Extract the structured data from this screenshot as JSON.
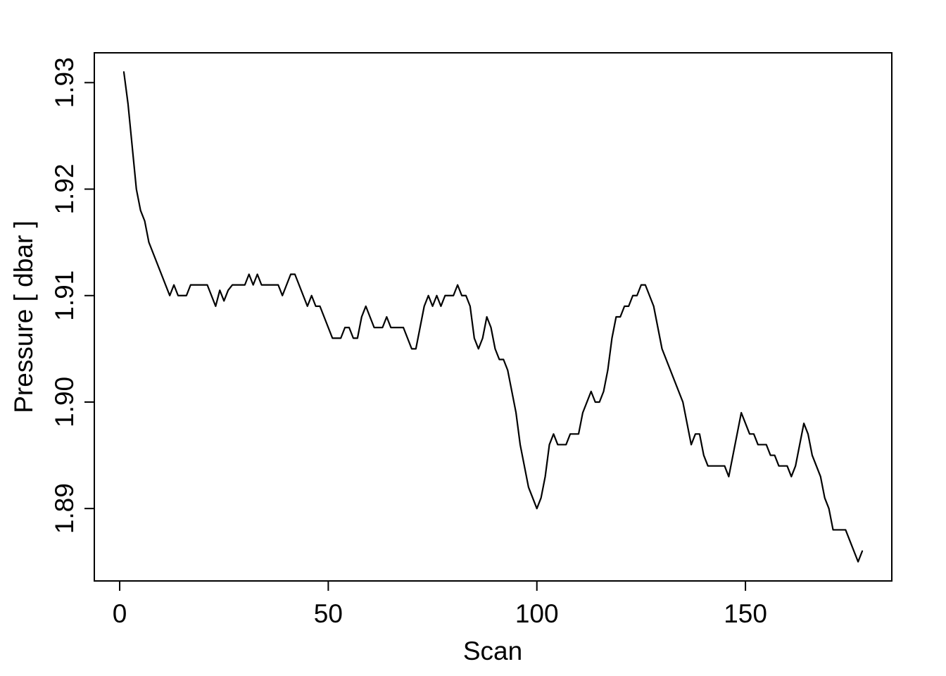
{
  "figure": {
    "background": "#ffffff",
    "line_color": "#000000",
    "axis_color": "#000000"
  },
  "chart_data": {
    "type": "line",
    "title": "",
    "xlabel": "Scan",
    "ylabel": "Pressure [ dbar ]",
    "legend": null,
    "grid": false,
    "x_start": 1,
    "x_step": 1,
    "xlim": [
      -6.08,
      185.08
    ],
    "ylim": [
      1.8832,
      1.9328
    ],
    "xticks": [
      0,
      50,
      100,
      150
    ],
    "xtick_labels": [
      "0",
      "50",
      "100",
      "150"
    ],
    "yticks": [
      1.89,
      1.9,
      1.91,
      1.92,
      1.93
    ],
    "ytick_labels": [
      "1.89",
      "1.90",
      "1.91",
      "1.92",
      "1.93"
    ],
    "values": [
      1.931,
      1.928,
      1.924,
      1.92,
      1.918,
      1.917,
      1.915,
      1.914,
      1.913,
      1.912,
      1.911,
      1.91,
      1.911,
      1.91,
      1.91,
      1.91,
      1.911,
      1.911,
      1.911,
      1.911,
      1.911,
      1.91,
      1.909,
      1.9105,
      1.9095,
      1.9105,
      1.911,
      1.911,
      1.911,
      1.911,
      1.912,
      1.911,
      1.912,
      1.911,
      1.911,
      1.911,
      1.911,
      1.911,
      1.91,
      1.911,
      1.912,
      1.912,
      1.911,
      1.91,
      1.909,
      1.91,
      1.909,
      1.909,
      1.908,
      1.907,
      1.906,
      1.906,
      1.906,
      1.907,
      1.907,
      1.906,
      1.906,
      1.908,
      1.909,
      1.908,
      1.907,
      1.907,
      1.907,
      1.908,
      1.907,
      1.907,
      1.907,
      1.907,
      1.906,
      1.905,
      1.905,
      1.907,
      1.909,
      1.91,
      1.909,
      1.91,
      1.909,
      1.91,
      1.91,
      1.91,
      1.911,
      1.91,
      1.91,
      1.909,
      1.906,
      1.905,
      1.906,
      1.908,
      1.907,
      1.905,
      1.904,
      1.904,
      1.903,
      1.901,
      1.899,
      1.896,
      1.894,
      1.892,
      1.891,
      1.89,
      1.891,
      1.893,
      1.896,
      1.897,
      1.896,
      1.896,
      1.896,
      1.897,
      1.897,
      1.897,
      1.899,
      1.9,
      1.901,
      1.9,
      1.9,
      1.901,
      1.903,
      1.906,
      1.908,
      1.908,
      1.909,
      1.909,
      1.91,
      1.91,
      1.911,
      1.911,
      1.91,
      1.909,
      1.907,
      1.905,
      1.904,
      1.903,
      1.902,
      1.901,
      1.9,
      1.898,
      1.896,
      1.897,
      1.897,
      1.895,
      1.894,
      1.894,
      1.894,
      1.894,
      1.894,
      1.893,
      1.895,
      1.897,
      1.899,
      1.898,
      1.897,
      1.897,
      1.896,
      1.896,
      1.896,
      1.895,
      1.895,
      1.894,
      1.894,
      1.894,
      1.893,
      1.894,
      1.896,
      1.898,
      1.897,
      1.895,
      1.894,
      1.893,
      1.891,
      1.89,
      1.888,
      1.888,
      1.888,
      1.888,
      1.887,
      1.886,
      1.885,
      1.886
    ]
  }
}
